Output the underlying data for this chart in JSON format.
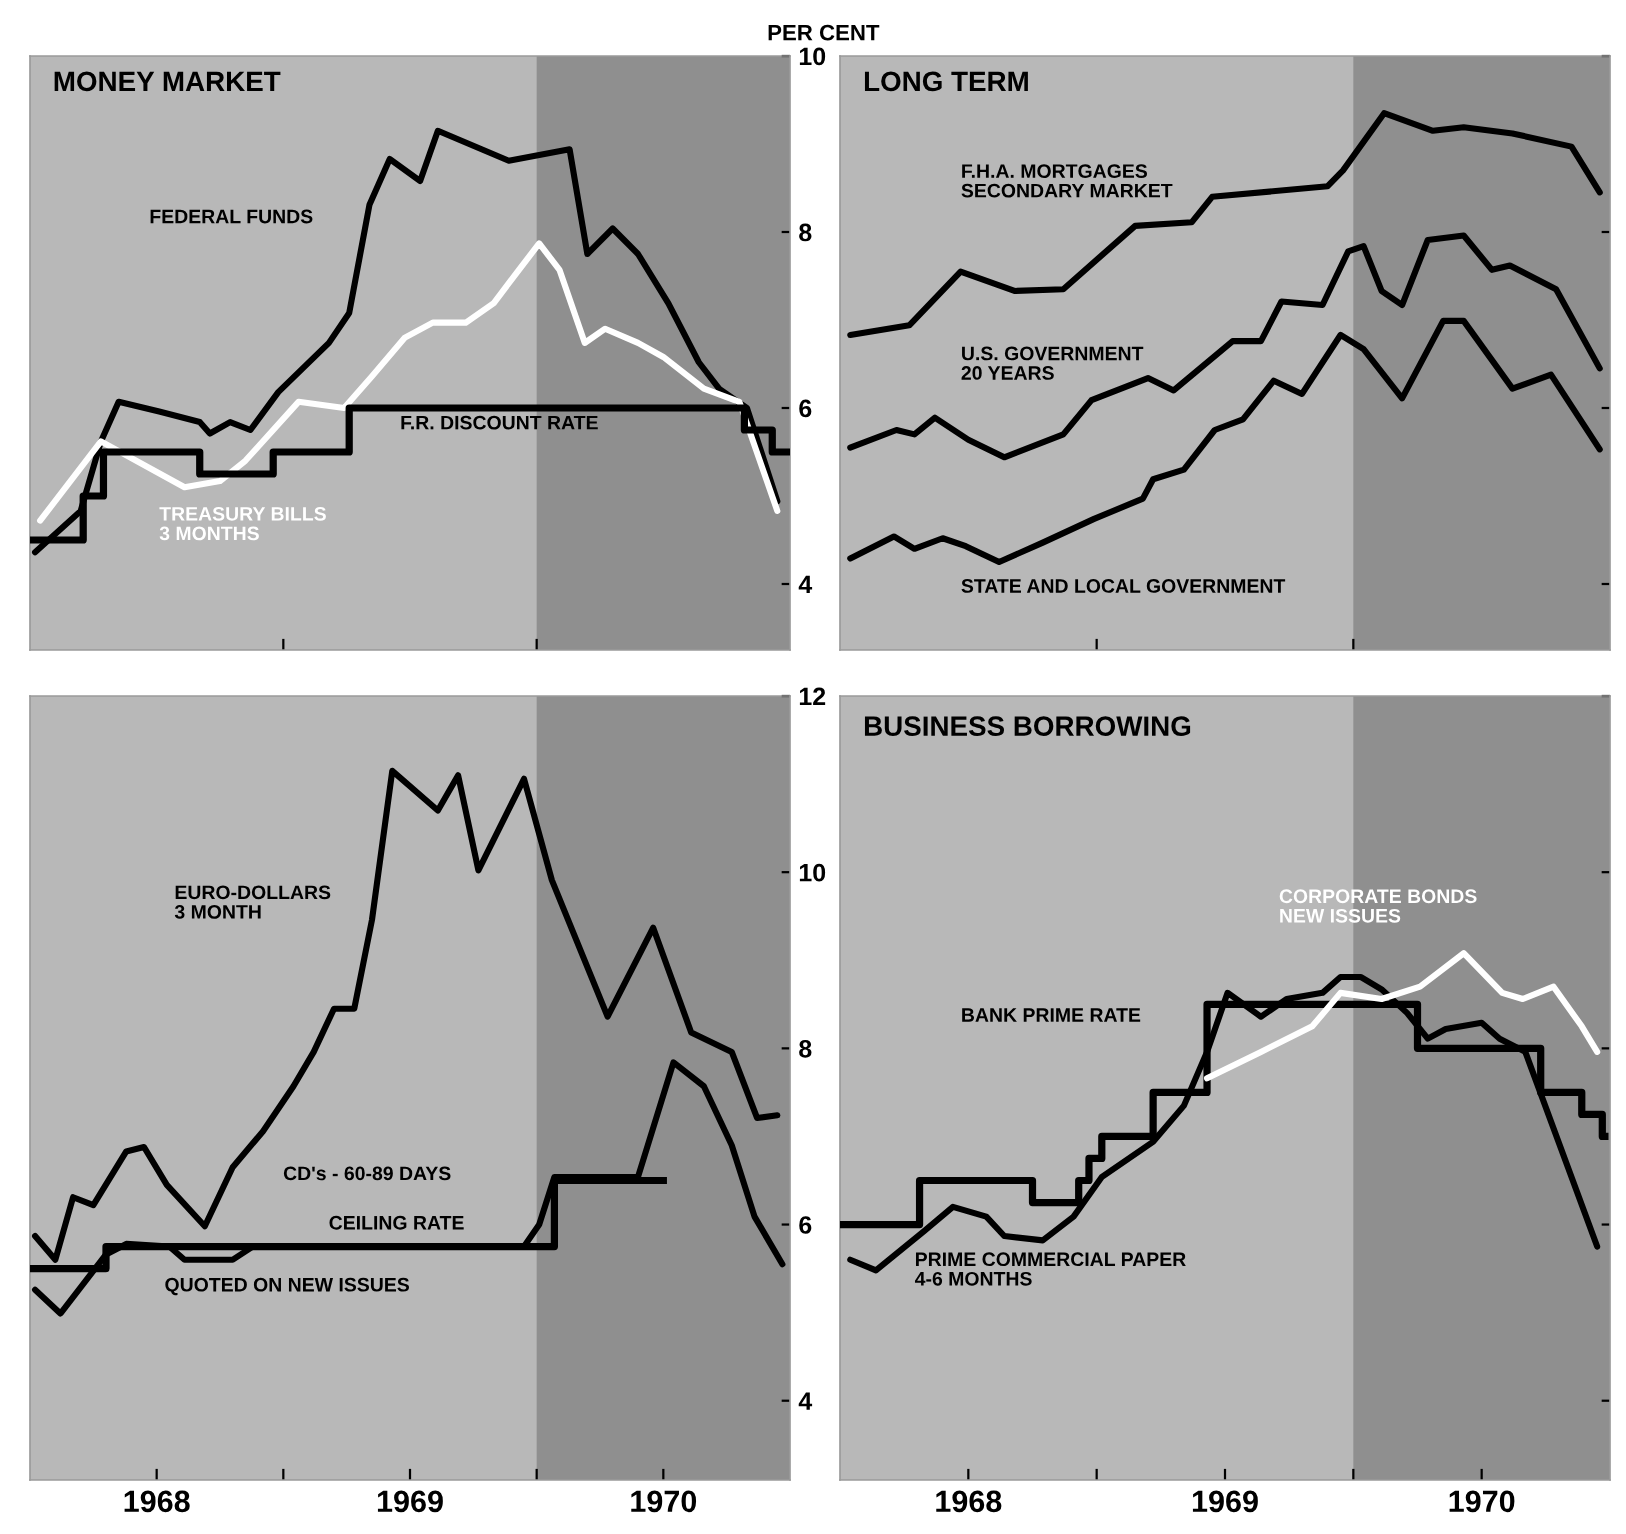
{
  "chart_data": [
    {
      "type": "line",
      "title": "MONEY MARKET",
      "ylabel": "PER CENT",
      "xlim": [
        1968.0,
        1971.0
      ],
      "ylim": [
        3.25,
        10.0
      ],
      "yticks": [
        4,
        6,
        8,
        10
      ],
      "tick_labels": "y",
      "xticks": [
        {
          "value": 1969,
          "label": null
        },
        {
          "value": 1970,
          "label": null
        }
      ],
      "bands": [
        {
          "axis": "x",
          "from": 1970.0,
          "to": 1971.0,
          "color": "#8f8f8f"
        }
      ],
      "series": [
        {
          "color": "#000000",
          "x": [
            1968.02,
            1968.2,
            1968.28,
            1968.35,
            1968.51,
            1968.67,
            1968.71,
            1968.79,
            1968.87,
            1968.98,
            1969.18,
            1969.26,
            1969.34,
            1969.42,
            1969.54,
            1969.61,
            1969.89,
            1970.13,
            1970.2,
            1970.3,
            1970.4,
            1970.52,
            1970.64,
            1970.72,
            1970.83,
            1970.95
          ],
          "values": [
            4.36,
            4.83,
            5.62,
            6.07,
            5.96,
            5.84,
            5.71,
            5.84,
            5.75,
            6.18,
            6.74,
            7.08,
            8.31,
            8.83,
            8.58,
            9.15,
            8.81,
            8.94,
            7.75,
            8.04,
            7.75,
            7.19,
            6.52,
            6.22,
            6.0,
            4.94
          ]
        },
        {
          "color": "#ffffff",
          "x": [
            1968.04,
            1968.28,
            1968.61,
            1968.75,
            1968.85,
            1969.06,
            1969.24,
            1969.35,
            1969.48,
            1969.59,
            1969.72,
            1969.83,
            1969.93,
            1970.01,
            1970.09,
            1970.19,
            1970.27,
            1970.4,
            1970.5,
            1970.66,
            1970.8,
            1970.95
          ],
          "values": [
            4.72,
            5.62,
            5.1,
            5.17,
            5.4,
            6.07,
            6.0,
            6.36,
            6.8,
            6.97,
            6.97,
            7.19,
            7.57,
            7.87,
            7.57,
            6.74,
            6.9,
            6.74,
            6.58,
            6.22,
            6.07,
            4.83
          ]
        },
        {
          "type": "step",
          "color": "#000000",
          "x": [
            1968.0,
            1968.21,
            1968.29,
            1968.67,
            1968.96,
            1969.26,
            1970.82,
            1970.93,
            1970.99
          ],
          "values": [
            4.5,
            5.0,
            5.5,
            5.25,
            5.5,
            6.0,
            5.75,
            5.5,
            5.5
          ]
        }
      ],
      "annotations": [
        "FEDERAL FUNDS",
        "F.R. DISCOUNT RATE",
        "TREASURY BILLS\n3 MONTHS"
      ]
    },
    {
      "type": "line",
      "title": "LONG TERM",
      "xlim": [
        1968.0,
        1971.0
      ],
      "ylim": [
        3.25,
        10.0
      ],
      "yticks": [
        4,
        6,
        8,
        10
      ],
      "tick_labels": false,
      "xticks": [
        {
          "value": 1969,
          "label": null
        },
        {
          "value": 1970,
          "label": null
        }
      ],
      "bands": [
        {
          "axis": "x",
          "from": 1970.0,
          "to": 1971.0,
          "color": "#8f8f8f"
        }
      ],
      "series": [
        {
          "color": "#000000",
          "x": [
            1968.04,
            1968.27,
            1968.47,
            1968.68,
            1968.87,
            1969.15,
            1969.37,
            1969.45,
            1969.9,
            1969.96,
            1970.12,
            1970.31,
            1970.43,
            1970.62,
            1970.85,
            1970.96
          ],
          "values": [
            6.83,
            6.94,
            7.55,
            7.33,
            7.35,
            8.07,
            8.11,
            8.4,
            8.52,
            8.7,
            9.35,
            9.15,
            9.19,
            9.12,
            8.97,
            8.45
          ]
        },
        {
          "color": "#000000",
          "x": [
            1968.04,
            1968.22,
            1968.29,
            1968.37,
            1968.5,
            1968.64,
            1968.87,
            1968.98,
            1969.2,
            1969.3,
            1969.53,
            1969.64,
            1969.72,
            1969.88,
            1969.98,
            1970.04,
            1970.11,
            1970.19,
            1970.29,
            1970.43,
            1970.54,
            1970.61,
            1970.79,
            1970.96
          ],
          "values": [
            5.55,
            5.75,
            5.7,
            5.89,
            5.64,
            5.44,
            5.7,
            6.09,
            6.34,
            6.2,
            6.76,
            6.76,
            7.21,
            7.17,
            7.78,
            7.84,
            7.33,
            7.17,
            7.91,
            7.96,
            7.57,
            7.62,
            7.35,
            6.45
          ]
        },
        {
          "color": "#000000",
          "x": [
            1968.04,
            1968.21,
            1968.29,
            1968.4,
            1968.49,
            1968.62,
            1968.79,
            1968.99,
            1969.18,
            1969.22,
            1969.34,
            1969.46,
            1969.57,
            1969.69,
            1969.8,
            1969.95,
            1970.04,
            1970.19,
            1970.35,
            1970.43,
            1970.62,
            1970.77,
            1970.96
          ],
          "values": [
            4.29,
            4.54,
            4.4,
            4.52,
            4.43,
            4.25,
            4.47,
            4.74,
            4.97,
            5.19,
            5.3,
            5.75,
            5.87,
            6.31,
            6.16,
            6.83,
            6.67,
            6.11,
            6.99,
            6.99,
            6.22,
            6.38,
            5.53
          ]
        }
      ],
      "annotations": [
        "F.H.A. MORTGAGES\nSECONDARY MARKET",
        "U.S. GOVERNMENT\n20 YEARS",
        "STATE AND LOCAL GOVERNMENT"
      ]
    },
    {
      "type": "line",
      "xlim": [
        1968.0,
        1971.0
      ],
      "ylim": [
        3.1,
        12.0
      ],
      "yticks": [
        4,
        6,
        8,
        10,
        12
      ],
      "xticks": [
        {
          "value": 1968.5,
          "label": "1968"
        },
        {
          "value": 1969,
          "label": null
        },
        {
          "value": 1969.5,
          "label": "1969"
        },
        {
          "value": 1970,
          "label": null
        },
        {
          "value": 1970.5,
          "label": "1970"
        }
      ],
      "bands": [
        {
          "axis": "x",
          "from": 1970.0,
          "to": 1971.0,
          "color": "#8f8f8f"
        }
      ],
      "series": [
        {
          "color": "#000000",
          "x": [
            1968.02,
            1968.1,
            1968.17,
            1968.25,
            1968.38,
            1968.45,
            1968.54,
            1968.69,
            1968.8,
            1968.92,
            1969.04,
            1969.12,
            1969.2,
            1969.28,
            1969.35,
            1969.43,
            1969.61,
            1969.69,
            1969.77,
            1969.95,
            1970.06,
            1970.28,
            1970.46,
            1970.61,
            1970.77,
            1970.87,
            1970.95
          ],
          "values": [
            5.87,
            5.6,
            6.31,
            6.22,
            6.83,
            6.88,
            6.45,
            5.98,
            6.65,
            7.06,
            7.57,
            7.96,
            8.45,
            8.45,
            9.46,
            11.15,
            10.7,
            11.1,
            10.02,
            11.06,
            9.91,
            8.36,
            9.37,
            8.18,
            7.96,
            7.21,
            7.24
          ]
        },
        {
          "type": "step",
          "color": "#000000",
          "x": [
            1968.0,
            1968.3,
            1970.07,
            1970.5
          ],
          "values": [
            5.5,
            5.75,
            6.5,
            6.5
          ]
        },
        {
          "color": "#000000",
          "x": [
            1968.02,
            1968.12,
            1968.3,
            1968.38,
            1968.55,
            1968.61,
            1968.8,
            1968.88,
            1969.95,
            1970.01,
            1970.07,
            1970.4,
            1970.54,
            1970.66,
            1970.77,
            1970.86,
            1970.97
          ],
          "values": [
            5.26,
            4.99,
            5.66,
            5.78,
            5.75,
            5.6,
            5.6,
            5.75,
            5.75,
            6.0,
            6.54,
            6.54,
            7.84,
            7.57,
            6.9,
            6.09,
            5.55
          ]
        }
      ],
      "annotations": [
        "EURO-DOLLARS\n3 MONTH",
        "CD's - 60-89 DAYS",
        "CEILING RATE",
        "QUOTED ON NEW ISSUES"
      ]
    },
    {
      "type": "line",
      "title": "BUSINESS BORROWING",
      "xlim": [
        1968.0,
        1971.0
      ],
      "ylim": [
        3.1,
        12.0
      ],
      "yticks": [
        4,
        6,
        8,
        10,
        12
      ],
      "tick_labels": "x",
      "xticks": [
        {
          "value": 1968.5,
          "label": "1968"
        },
        {
          "value": 1969,
          "label": null
        },
        {
          "value": 1969.5,
          "label": "1969"
        },
        {
          "value": 1970,
          "label": null
        },
        {
          "value": 1970.5,
          "label": "1970"
        }
      ],
      "bands": [
        {
          "axis": "x",
          "from": 1970.0,
          "to": 1971.0,
          "color": "#8f8f8f"
        }
      ],
      "series": [
        {
          "type": "step",
          "color": "#000000",
          "x": [
            1968.0,
            1968.31,
            1968.75,
            1968.93,
            1968.97,
            1969.02,
            1969.22,
            1969.43,
            1970.25,
            1970.73,
            1970.89,
            1970.97,
            1970.98
          ],
          "values": [
            6.0,
            6.5,
            6.25,
            6.5,
            6.75,
            7.0,
            7.5,
            8.5,
            8.0,
            7.5,
            7.25,
            7.0,
            7.0
          ]
        },
        {
          "color": "#000000",
          "x": [
            1968.04,
            1968.14,
            1968.33,
            1968.44,
            1968.57,
            1968.64,
            1968.79,
            1968.91,
            1969.02,
            1969.22,
            1969.34,
            1969.43,
            1969.51,
            1969.64,
            1969.74,
            1969.88,
            1969.95,
            1970.03,
            1970.11,
            1970.21,
            1970.29,
            1970.36,
            1970.5,
            1970.57,
            1970.67,
            1970.95
          ],
          "values": [
            5.6,
            5.48,
            5.93,
            6.2,
            6.09,
            5.87,
            5.82,
            6.09,
            6.54,
            6.94,
            7.35,
            7.96,
            8.63,
            8.36,
            8.56,
            8.63,
            8.81,
            8.81,
            8.67,
            8.4,
            8.11,
            8.22,
            8.29,
            8.11,
            7.96,
            5.75
          ]
        },
        {
          "color": "#ffffff",
          "x": [
            1969.43,
            1969.64,
            1969.84,
            1969.95,
            1970.11,
            1970.26,
            1970.43,
            1970.58,
            1970.66,
            1970.78,
            1970.89,
            1970.95
          ],
          "values": [
            7.66,
            7.96,
            8.25,
            8.63,
            8.56,
            8.7,
            9.08,
            8.63,
            8.56,
            8.7,
            8.25,
            7.96
          ]
        }
      ],
      "annotations": [
        "BANK PRIME RATE",
        "PRIME COMMERCIAL PAPER\n4-6 MONTHS",
        "CORPORATE BONDS\nNEW ISSUES"
      ]
    }
  ]
}
